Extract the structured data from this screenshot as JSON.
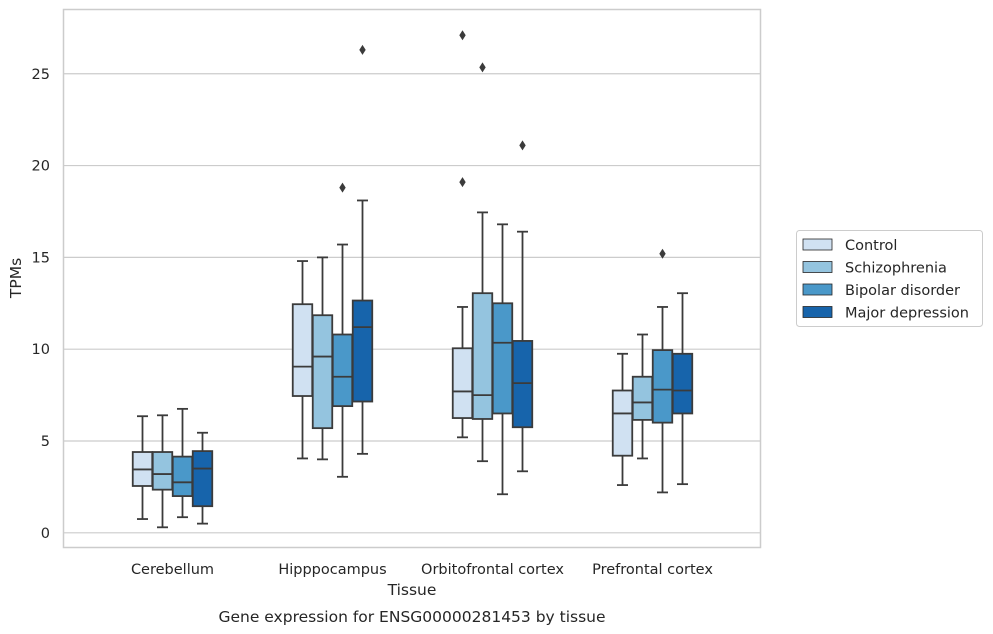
{
  "chart_data": {
    "type": "boxplot",
    "title": "",
    "caption": "Gene expression for ENSG00000281453 by tissue",
    "xlabel": "Tissue",
    "ylabel": "TPMs",
    "ylim": [
      -0.8,
      28.5
    ],
    "yticks": [
      0,
      5,
      10,
      15,
      20,
      25
    ],
    "grid": "horizontal",
    "legend_position": "right",
    "categories": [
      "Cerebellum",
      "Hipppocampus",
      "Orbitofrontal cortex",
      "Prefrontal cortex"
    ],
    "series": [
      {
        "name": "Control",
        "color": "#d0e1f2",
        "boxes": [
          {
            "whislo": 0.75,
            "q1": 2.55,
            "med": 3.45,
            "q3": 4.4,
            "whishi": 6.35,
            "fliers": []
          },
          {
            "whislo": 4.05,
            "q1": 7.45,
            "med": 9.05,
            "q3": 12.45,
            "whishi": 14.8,
            "fliers": []
          },
          {
            "whislo": 5.2,
            "q1": 6.25,
            "med": 7.7,
            "q3": 10.05,
            "whishi": 12.3,
            "fliers": [
              19.1,
              27.1
            ]
          },
          {
            "whislo": 2.6,
            "q1": 4.2,
            "med": 6.5,
            "q3": 7.75,
            "whishi": 9.75,
            "fliers": []
          }
        ]
      },
      {
        "name": "Schizophrenia",
        "color": "#94c4df",
        "boxes": [
          {
            "whislo": 0.3,
            "q1": 2.35,
            "med": 3.2,
            "q3": 4.4,
            "whishi": 6.4,
            "fliers": []
          },
          {
            "whislo": 4.0,
            "q1": 5.7,
            "med": 9.6,
            "q3": 11.85,
            "whishi": 15.0,
            "fliers": []
          },
          {
            "whislo": 3.9,
            "q1": 6.2,
            "med": 7.5,
            "q3": 13.05,
            "whishi": 17.45,
            "fliers": [
              25.35
            ]
          },
          {
            "whislo": 4.05,
            "q1": 6.15,
            "med": 7.1,
            "q3": 8.5,
            "whishi": 10.8,
            "fliers": []
          }
        ]
      },
      {
        "name": "Bipolar disorder",
        "color": "#4a98c9",
        "boxes": [
          {
            "whislo": 0.85,
            "q1": 2.0,
            "med": 2.75,
            "q3": 4.15,
            "whishi": 6.75,
            "fliers": []
          },
          {
            "whislo": 3.05,
            "q1": 6.9,
            "med": 8.5,
            "q3": 10.8,
            "whishi": 15.7,
            "fliers": [
              18.8
            ]
          },
          {
            "whislo": 2.1,
            "q1": 6.5,
            "med": 10.35,
            "q3": 12.5,
            "whishi": 16.8,
            "fliers": []
          },
          {
            "whislo": 2.2,
            "q1": 6.0,
            "med": 7.8,
            "q3": 9.95,
            "whishi": 12.3,
            "fliers": [
              15.2
            ]
          }
        ]
      },
      {
        "name": "Major depression",
        "color": "#1764ab",
        "boxes": [
          {
            "whislo": 0.5,
            "q1": 1.45,
            "med": 3.5,
            "q3": 4.45,
            "whishi": 5.45,
            "fliers": []
          },
          {
            "whislo": 4.3,
            "q1": 7.15,
            "med": 11.2,
            "q3": 12.65,
            "whishi": 18.1,
            "fliers": [
              26.3
            ]
          },
          {
            "whislo": 3.35,
            "q1": 5.75,
            "med": 8.15,
            "q3": 10.45,
            "whishi": 16.4,
            "fliers": [
              21.1
            ]
          },
          {
            "whislo": 2.65,
            "q1": 6.5,
            "med": 7.75,
            "q3": 9.75,
            "whishi": 13.05,
            "fliers": []
          }
        ]
      }
    ],
    "colors": {
      "edge": "#3b3b3b",
      "grid": "#cccccc",
      "frame": "#cccccc",
      "text": "#262626"
    }
  }
}
